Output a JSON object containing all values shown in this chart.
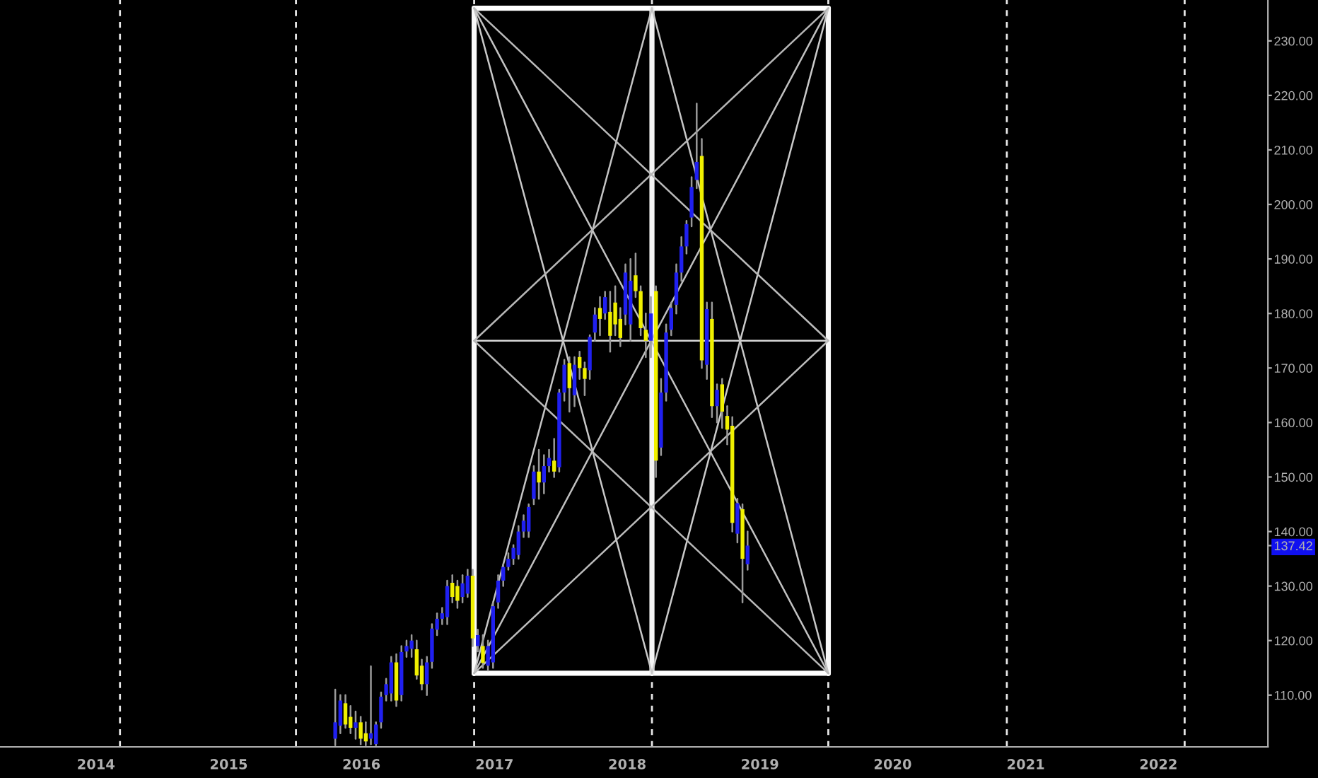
{
  "chart_data": {
    "type": "candlestick",
    "x": [
      "2015-10-21",
      "2015-11-04",
      "2015-11-18",
      "2015-12-02",
      "2015-12-16",
      "2015-12-30",
      "2016-01-13",
      "2016-01-27",
      "2016-02-10",
      "2016-02-24",
      "2016-03-09",
      "2016-03-23",
      "2016-04-06",
      "2016-04-20",
      "2016-05-04",
      "2016-05-18",
      "2016-06-01",
      "2016-06-15",
      "2016-06-29",
      "2016-07-13",
      "2016-07-27",
      "2016-08-10",
      "2016-08-24",
      "2016-09-07",
      "2016-09-21",
      "2016-10-05",
      "2016-10-19",
      "2016-11-02",
      "2016-11-16",
      "2016-11-30",
      "2016-12-14",
      "2016-12-28",
      "2017-01-11",
      "2017-01-25",
      "2017-02-08",
      "2017-02-22",
      "2017-03-08",
      "2017-03-22",
      "2017-04-05",
      "2017-04-19",
      "2017-05-03",
      "2017-05-17",
      "2017-05-31",
      "2017-06-14",
      "2017-06-28",
      "2017-07-12",
      "2017-07-26",
      "2017-08-09",
      "2017-08-23",
      "2017-09-06",
      "2017-09-20",
      "2017-10-04",
      "2017-10-18",
      "2017-11-01",
      "2017-11-15",
      "2017-11-29",
      "2017-12-13",
      "2017-12-27",
      "2018-01-10",
      "2018-01-24",
      "2018-02-07",
      "2018-02-21",
      "2018-03-07",
      "2018-03-21",
      "2018-04-04",
      "2018-04-18",
      "2018-05-02",
      "2018-05-16",
      "2018-05-30",
      "2018-06-13",
      "2018-06-27",
      "2018-07-11",
      "2018-07-25",
      "2018-08-08",
      "2018-08-22",
      "2018-09-05",
      "2018-09-19",
      "2018-10-03",
      "2018-10-17",
      "2018-10-31",
      "2018-11-14",
      "2018-11-28"
    ],
    "ohlc": [
      [
        102,
        111,
        100.8,
        105
      ],
      [
        104.4,
        110,
        103,
        109
      ],
      [
        108.5,
        110,
        104,
        104.6
      ],
      [
        106,
        108,
        103,
        104
      ],
      [
        104,
        107,
        102,
        105
      ],
      [
        105,
        106,
        101,
        102
      ],
      [
        103,
        105,
        100.8,
        101.5
      ],
      [
        102,
        115.3,
        101,
        103
      ],
      [
        101,
        105,
        100.8,
        104.6
      ],
      [
        105,
        110.5,
        104,
        109.7
      ],
      [
        110,
        113,
        109,
        112
      ],
      [
        110.3,
        117,
        109,
        116
      ],
      [
        116,
        117.5,
        108,
        109
      ],
      [
        110,
        119,
        109,
        117.9
      ],
      [
        118,
        120,
        117,
        119
      ],
      [
        118.5,
        121,
        117,
        120
      ],
      [
        118.4,
        120,
        113,
        113.6
      ],
      [
        115.4,
        116.5,
        111,
        112
      ],
      [
        112,
        117,
        110,
        116
      ],
      [
        116.1,
        123,
        115,
        122.2
      ],
      [
        122,
        125,
        121,
        124
      ],
      [
        124,
        126,
        123,
        125
      ],
      [
        124.3,
        131,
        123,
        130
      ],
      [
        130.6,
        132,
        127,
        128
      ],
      [
        130,
        131,
        126,
        127.3
      ],
      [
        128,
        132,
        127,
        130.5
      ],
      [
        128.6,
        133,
        128,
        131.9
      ],
      [
        131.9,
        133,
        119,
        120.4
      ],
      [
        119,
        122,
        118,
        121
      ],
      [
        119,
        121,
        115,
        115.9
      ],
      [
        115.4,
        120,
        114.5,
        119
      ],
      [
        116,
        127,
        115,
        126.3
      ],
      [
        127,
        132,
        126,
        131
      ],
      [
        131,
        134,
        130,
        133.5
      ],
      [
        133.5,
        136,
        133,
        135
      ],
      [
        135,
        137.5,
        134,
        137
      ],
      [
        135.7,
        141,
        135,
        140
      ],
      [
        140,
        143,
        139,
        142
      ],
      [
        140,
        145,
        139,
        144.5
      ],
      [
        146,
        152,
        145,
        151
      ],
      [
        151,
        155,
        146,
        149
      ],
      [
        149,
        154,
        147,
        152
      ],
      [
        152,
        155,
        151,
        153.5
      ],
      [
        153,
        157,
        150,
        151
      ],
      [
        151.8,
        166,
        151,
        165.5
      ],
      [
        165.5,
        171.5,
        164,
        170.6
      ],
      [
        170.9,
        172,
        162,
        166.3
      ],
      [
        165,
        172,
        163,
        170.6
      ],
      [
        172,
        173,
        168,
        170
      ],
      [
        170,
        171,
        165,
        168
      ],
      [
        169.6,
        176,
        168,
        175.7
      ],
      [
        176.5,
        181,
        175,
        179.8
      ],
      [
        181,
        183,
        176,
        179
      ],
      [
        180,
        184,
        179,
        183
      ],
      [
        180.3,
        184,
        173,
        175.9
      ],
      [
        182,
        185,
        176,
        178
      ],
      [
        179,
        181,
        174,
        175.5
      ],
      [
        179.8,
        189,
        178,
        187.5
      ],
      [
        178,
        190,
        175,
        186
      ],
      [
        187,
        191,
        183,
        184.1
      ],
      [
        184.1,
        185,
        176,
        177.3
      ],
      [
        177,
        180,
        172,
        175
      ],
      [
        175,
        183,
        172,
        180
      ],
      [
        184.1,
        185,
        150,
        153
      ],
      [
        155.4,
        168,
        154,
        165.5
      ],
      [
        165.5,
        178,
        164,
        176.5
      ],
      [
        177,
        182,
        176,
        181
      ],
      [
        181.6,
        189,
        180,
        187.5
      ],
      [
        187.5,
        194,
        186,
        192.3
      ],
      [
        192.3,
        197,
        191,
        196.4
      ],
      [
        197.6,
        205,
        196,
        203.2
      ],
      [
        204.5,
        218.5,
        203,
        207.8
      ],
      [
        208.9,
        212,
        170,
        171.4
      ],
      [
        170.6,
        182,
        168,
        180.8
      ],
      [
        179,
        182,
        161,
        163
      ],
      [
        163,
        167,
        160,
        166
      ],
      [
        167,
        168,
        159,
        162
      ],
      [
        161.2,
        163,
        156,
        158.7
      ],
      [
        159.4,
        161,
        140,
        141.6
      ],
      [
        139.6,
        146,
        138,
        145.2
      ],
      [
        144.1,
        145,
        127,
        135
      ],
      [
        134,
        140,
        133,
        137.42
      ]
    ],
    "colors": [
      "#2020f0",
      "#2020f0",
      "#f0f000",
      "#f0f000",
      "#2020f0",
      "#f0f000",
      "#f0f000",
      "#2020f0",
      "#2020f0",
      "#2020f0",
      "#2020f0",
      "#2020f0",
      "#f0f000",
      "#2020f0",
      "#2020f0",
      "#2020f0",
      "#f0f000",
      "#f0f000",
      "#2020f0",
      "#2020f0",
      "#2020f0",
      "#2020f0",
      "#2020f0",
      "#f0f000",
      "#f0f000",
      "#2020f0",
      "#2020f0",
      "#f0f000",
      "#2020f0",
      "#f0f000",
      "#2020f0",
      "#2020f0",
      "#2020f0",
      "#2020f0",
      "#2020f0",
      "#2020f0",
      "#2020f0",
      "#2020f0",
      "#2020f0",
      "#2020f0",
      "#f0f000",
      "#2020f0",
      "#2020f0",
      "#f0f000",
      "#2020f0",
      "#2020f0",
      "#f0f000",
      "#2020f0",
      "#f0f000",
      "#f0f000",
      "#2020f0",
      "#2020f0",
      "#f0f000",
      "#2020f0",
      "#f0f000",
      "#f0f000",
      "#f0f000",
      "#2020f0",
      "#2020f0",
      "#f0f000",
      "#f0f000",
      "#f0f000",
      "#2020f0",
      "#f0f000",
      "#2020f0",
      "#2020f0",
      "#2020f0",
      "#2020f0",
      "#2020f0",
      "#2020f0",
      "#2020f0",
      "#2020f0",
      "#f0f000",
      "#2020f0",
      "#f0f000",
      "#2020f0",
      "#f0f000",
      "#f0f000",
      "#f0f000",
      "#2020f0",
      "#f0f000",
      "#2020f0"
    ],
    "series": [
      {
        "type": "line",
        "color": "#ffffff",
        "x": [
          "2016-11-06",
          "2019-07-08"
        ],
        "values": [
          114,
          114
        ]
      },
      {
        "type": "line",
        "color": "#fefefe",
        "x": [
          "2016-11-06",
          "2019-07-08"
        ],
        "values": [
          236,
          236
        ]
      },
      {
        "type": "line",
        "color": "#fafafa",
        "x": [
          "2016-11-06",
          "2016-11-06"
        ],
        "values": [
          114,
          236
        ]
      },
      {
        "type": "line",
        "color": "#f8f8f8",
        "x": [
          "2019-07-08",
          "2019-07-08"
        ],
        "values": [
          114,
          236
        ]
      },
      {
        "type": "line",
        "color": "#f4f4f4",
        "x": [
          "2018-03-10",
          "2018-03-10"
        ],
        "values": [
          114,
          236
        ]
      },
      {
        "type": "line",
        "color": "#d8d8d8",
        "x": [
          "2016-11-06",
          "2019-07-08"
        ],
        "values": [
          175,
          175
        ]
      },
      {
        "type": "line",
        "color": "#c0c0c0",
        "x": [
          "2016-11-06",
          "2019-07-08"
        ],
        "values": [
          114,
          236
        ]
      },
      {
        "type": "line",
        "color": "#c2c2c2",
        "x": [
          "2016-11-06",
          "2019-07-08"
        ],
        "values": [
          236,
          114
        ]
      },
      {
        "type": "line",
        "color": "#c4c4c4",
        "x": [
          "2016-11-06",
          "2018-03-10"
        ],
        "values": [
          114,
          236
        ]
      },
      {
        "type": "line",
        "color": "#c6c6c6",
        "x": [
          "2019-07-08",
          "2018-03-10"
        ],
        "values": [
          114,
          236
        ]
      },
      {
        "type": "line",
        "color": "#c8c8c8",
        "x": [
          "2016-11-06",
          "2018-03-10"
        ],
        "values": [
          236,
          114
        ]
      },
      {
        "type": "line",
        "color": "#cacaca",
        "x": [
          "2019-07-08",
          "2018-03-10"
        ],
        "values": [
          236,
          114
        ]
      },
      {
        "type": "line",
        "color": "#bcbcbc",
        "x": [
          "2016-11-06",
          "2019-07-08"
        ],
        "values": [
          114,
          175
        ]
      },
      {
        "type": "line",
        "color": "#bababa",
        "x": [
          "2016-11-06",
          "2019-07-08"
        ],
        "values": [
          236,
          175
        ]
      },
      {
        "type": "line",
        "color": "#b8b8b8",
        "x": [
          "2019-07-08",
          "2016-11-06"
        ],
        "values": [
          114,
          175
        ]
      },
      {
        "type": "line",
        "color": "#b6b6b6",
        "x": [
          "2019-07-08",
          "2016-11-06"
        ],
        "values": [
          236,
          175
        ]
      }
    ],
    "ref_lines": [
      {
        "axis": "x",
        "value": "2014-03-08",
        "color": "#e6e6e6",
        "line_style": "dashed"
      },
      {
        "axis": "x",
        "value": "2015-07-05",
        "color": "#e6e6e6",
        "line_style": "dashed"
      },
      {
        "axis": "x",
        "value": "2016-11-06",
        "color": "#e6e6e6",
        "line_style": "dashed"
      },
      {
        "axis": "x",
        "value": "2018-03-10",
        "color": "#e6e6e6",
        "line_style": "dashed"
      },
      {
        "axis": "x",
        "value": "2019-07-08",
        "color": "#e6e6e6",
        "line_style": "dashed"
      },
      {
        "axis": "x",
        "value": "2020-11-10",
        "color": "#e6e6e6",
        "line_style": "dashed"
      },
      {
        "axis": "x",
        "value": "2022-03-14",
        "color": "#e6e6e6",
        "line_style": "dashed"
      }
    ],
    "xlim": [
      "2013-04-12",
      "2022-10-29"
    ],
    "xticks": [
      {
        "value": "2014-01-01",
        "label": "2014"
      },
      {
        "value": "2015-01-01",
        "label": "2015"
      },
      {
        "value": "2016-01-01",
        "label": "2016"
      },
      {
        "value": "2017-01-01",
        "label": "2017"
      },
      {
        "value": "2018-01-01",
        "label": "2018"
      },
      {
        "value": "2019-01-01",
        "label": "2019"
      },
      {
        "value": "2020-01-01",
        "label": "2020"
      },
      {
        "value": "2021-01-01",
        "label": "2021"
      },
      {
        "value": "2022-01-01",
        "label": "2022"
      }
    ],
    "ylim": [
      100.5,
      237.5
    ],
    "yticks": [
      {
        "value": 110,
        "label": "110.00"
      },
      {
        "value": 120,
        "label": "120.00"
      },
      {
        "value": 130,
        "label": "130.00"
      },
      {
        "value": 140,
        "label": "140.00"
      },
      {
        "value": 150,
        "label": "150.00"
      },
      {
        "value": 160,
        "label": "160.00"
      },
      {
        "value": 170,
        "label": "170.00"
      },
      {
        "value": 180,
        "label": "180.00"
      },
      {
        "value": 190,
        "label": "190.00"
      },
      {
        "value": 200,
        "label": "200.00"
      },
      {
        "value": 210,
        "label": "210.00"
      },
      {
        "value": 220,
        "label": "220.00"
      },
      {
        "value": 230,
        "label": "230.00"
      },
      {
        "value": 137.42,
        "label": "137.42"
      }
    ]
  }
}
